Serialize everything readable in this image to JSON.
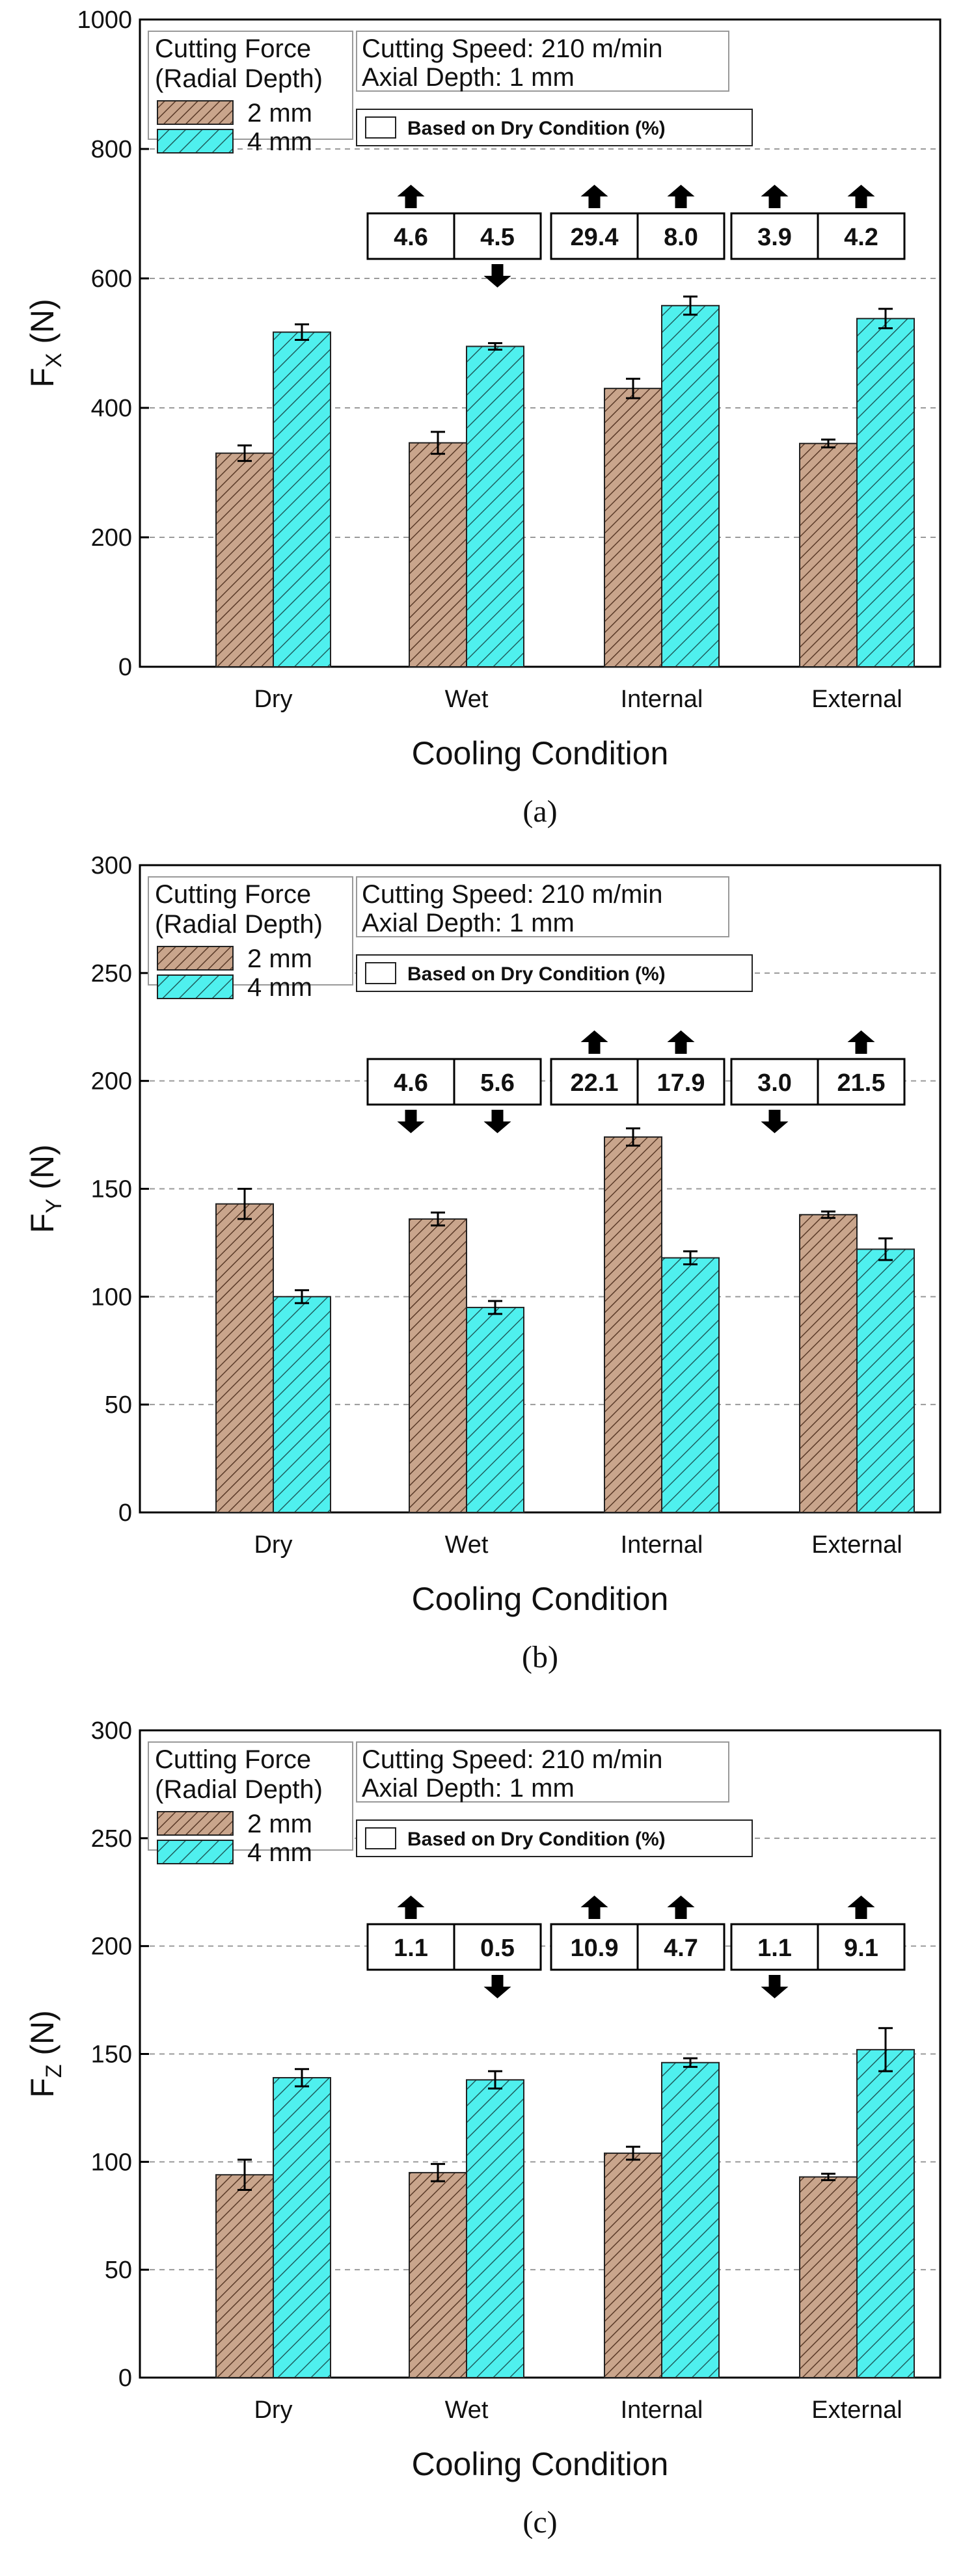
{
  "colors": {
    "series_2mm_fill": "#c9a58c",
    "series_2mm_hatch": "#5a3a28",
    "series_4mm_fill": "#4ff0ee",
    "series_4mm_hatch": "#1f5f5f",
    "grid": "#9a9a9a"
  },
  "chart_data": [
    {
      "type": "bar",
      "caption": "(a)",
      "ylabel_main": "F",
      "ylabel_sub": "X",
      "ylabel_unit": "(N)",
      "xlabel": "Cooling Condition",
      "ylim": [
        0,
        1000
      ],
      "yticks": [
        0,
        200,
        400,
        600,
        800,
        1000
      ],
      "categories": [
        "Dry",
        "Wet",
        "Internal",
        "External"
      ],
      "series": [
        {
          "name": "2 mm",
          "values": [
            330,
            346,
            430,
            345
          ],
          "errors": [
            12,
            17,
            15,
            6
          ]
        },
        {
          "name": "4 mm",
          "values": [
            517,
            495,
            558,
            538
          ],
          "errors": [
            12,
            5,
            14,
            15
          ]
        }
      ],
      "legend_title": [
        "Cutting Force",
        "(Radial Depth)"
      ],
      "conditions": [
        "Cutting Speed: 210 m/min",
        "Axial Depth: 1 mm"
      ],
      "based_label": "Based on Dry Condition (%)",
      "percent_changes": [
        {
          "category": "Wet",
          "values": [
            "4.6",
            "4.5"
          ],
          "directions": [
            "up",
            "down"
          ]
        },
        {
          "category": "Internal",
          "values": [
            "29.4",
            "8.0"
          ],
          "directions": [
            "up",
            "up"
          ]
        },
        {
          "category": "External",
          "values": [
            "3.9",
            "4.2"
          ],
          "directions": [
            "up",
            "up"
          ]
        }
      ]
    },
    {
      "type": "bar",
      "caption": "(b)",
      "ylabel_main": "F",
      "ylabel_sub": "Y",
      "ylabel_unit": "(N)",
      "xlabel": "Cooling Condition",
      "ylim": [
        0,
        300
      ],
      "yticks": [
        0,
        50,
        100,
        150,
        200,
        250,
        300
      ],
      "categories": [
        "Dry",
        "Wet",
        "Internal",
        "External"
      ],
      "series": [
        {
          "name": "2 mm",
          "values": [
            143,
            136,
            174,
            138
          ],
          "errors": [
            7,
            3,
            4,
            1.5
          ]
        },
        {
          "name": "4 mm",
          "values": [
            100,
            95,
            118,
            122
          ],
          "errors": [
            3,
            3,
            3,
            5
          ]
        }
      ],
      "legend_title": [
        "Cutting Force",
        "(Radial Depth)"
      ],
      "conditions": [
        "Cutting Speed: 210 m/min",
        "Axial Depth: 1 mm"
      ],
      "based_label": "Based on Dry Condition (%)",
      "percent_changes": [
        {
          "category": "Wet",
          "values": [
            "4.6",
            "5.6"
          ],
          "directions": [
            "down",
            "down"
          ]
        },
        {
          "category": "Internal",
          "values": [
            "22.1",
            "17.9"
          ],
          "directions": [
            "up",
            "up"
          ]
        },
        {
          "category": "External",
          "values": [
            "3.0",
            "21.5"
          ],
          "directions": [
            "down",
            "up"
          ]
        }
      ]
    },
    {
      "type": "bar",
      "caption": "(c)",
      "ylabel_main": "F",
      "ylabel_sub": "Z",
      "ylabel_unit": "(N)",
      "xlabel": "Cooling Condition",
      "ylim": [
        0,
        300
      ],
      "yticks": [
        0,
        50,
        100,
        150,
        200,
        250,
        300
      ],
      "categories": [
        "Dry",
        "Wet",
        "Internal",
        "External"
      ],
      "series": [
        {
          "name": "2 mm",
          "values": [
            94,
            95,
            104,
            93
          ],
          "errors": [
            7,
            4,
            3,
            1.5
          ]
        },
        {
          "name": "4 mm",
          "values": [
            139,
            138,
            146,
            152
          ],
          "errors": [
            4,
            4,
            2,
            10
          ]
        }
      ],
      "legend_title": [
        "Cutting Force",
        "(Radial Depth)"
      ],
      "conditions": [
        "Cutting Speed: 210 m/min",
        "Axial Depth: 1 mm"
      ],
      "based_label": "Based on Dry Condition (%)",
      "percent_changes": [
        {
          "category": "Wet",
          "values": [
            "1.1",
            "0.5"
          ],
          "directions": [
            "up",
            "down"
          ]
        },
        {
          "category": "Internal",
          "values": [
            "10.9",
            "4.7"
          ],
          "directions": [
            "up",
            "up"
          ]
        },
        {
          "category": "External",
          "values": [
            "1.1",
            "9.1"
          ],
          "directions": [
            "down",
            "up"
          ]
        }
      ]
    }
  ]
}
